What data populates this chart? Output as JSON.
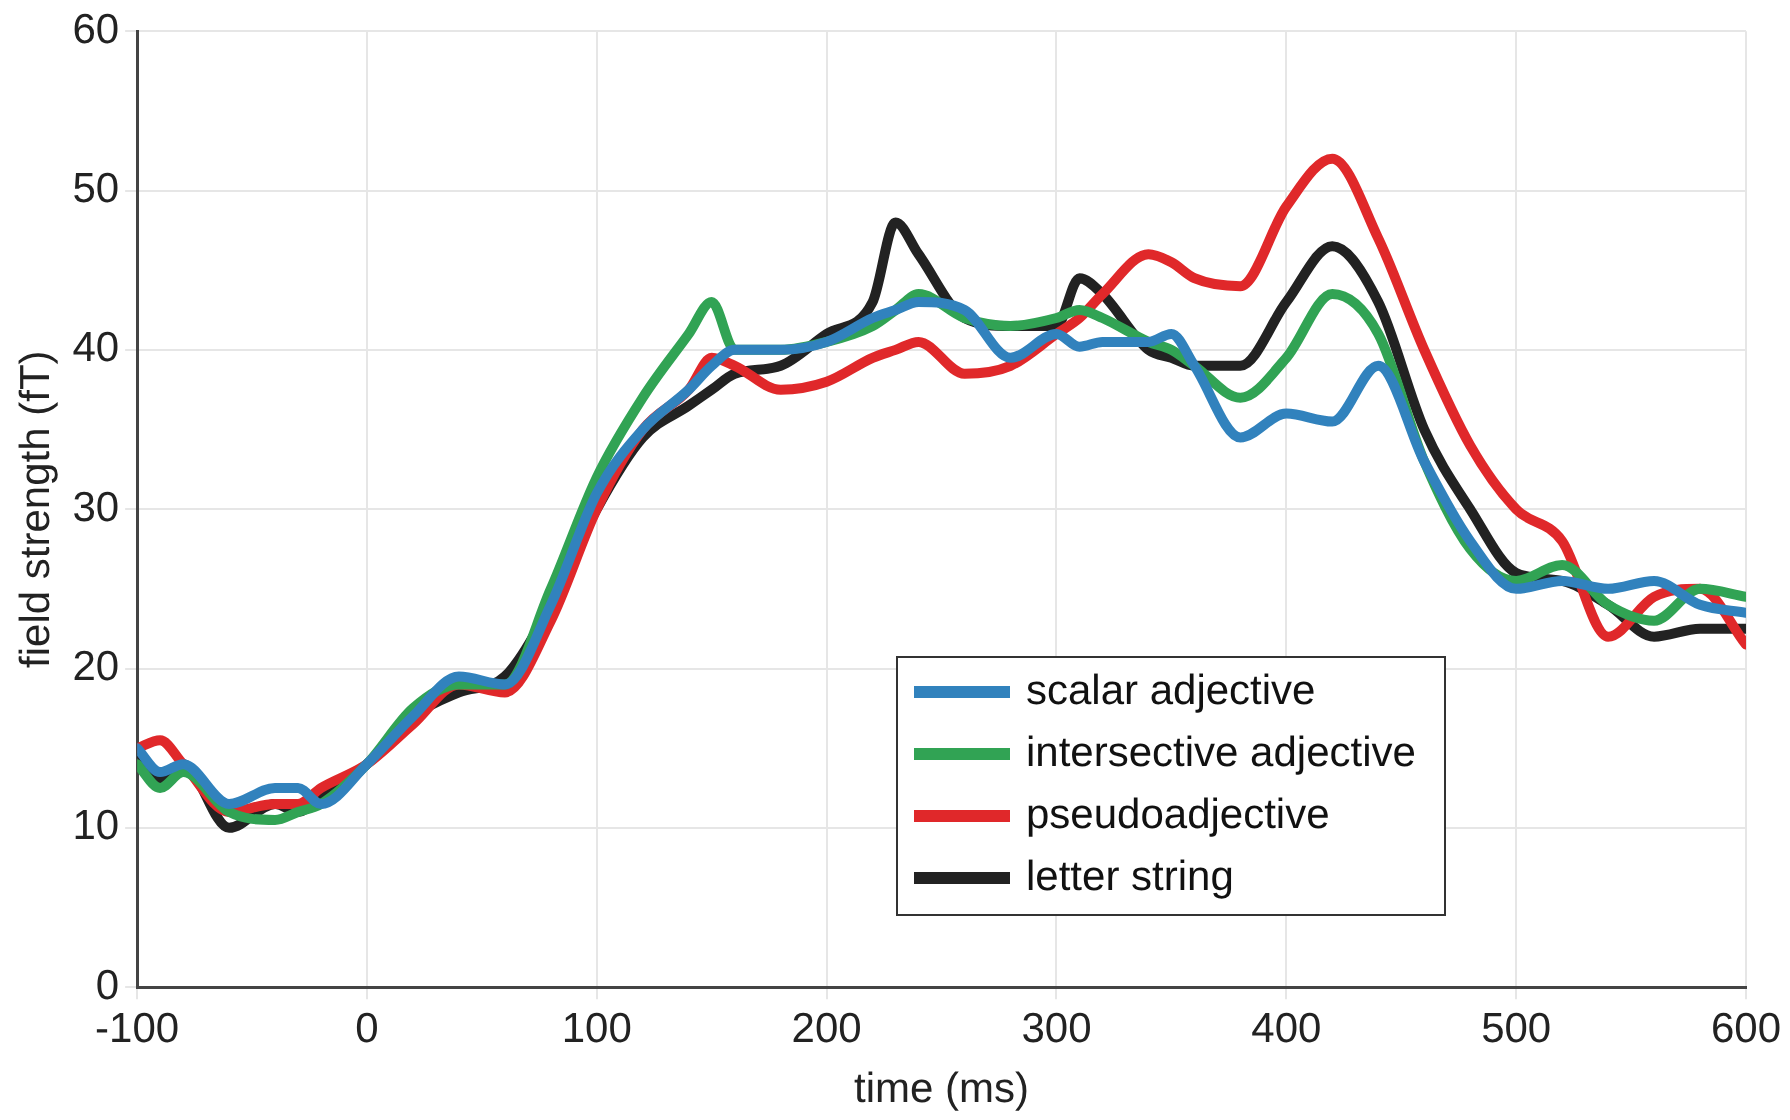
{
  "chart_data": {
    "type": "line",
    "xlabel": "time (ms)",
    "ylabel": "field strength (fT)",
    "x": [
      -100,
      -90,
      -80,
      -60,
      -40,
      -30,
      -20,
      0,
      20,
      40,
      60,
      80,
      100,
      120,
      140,
      150,
      160,
      180,
      200,
      220,
      230,
      240,
      260,
      280,
      300,
      310,
      320,
      340,
      350,
      360,
      380,
      400,
      420,
      440,
      460,
      480,
      500,
      520,
      540,
      560,
      580,
      600
    ],
    "xlim": [
      -100,
      600
    ],
    "xticks": [
      -100,
      0,
      100,
      200,
      300,
      400,
      500,
      600
    ],
    "ylim": [
      0,
      60
    ],
    "yticks": [
      0,
      10,
      20,
      30,
      40,
      50,
      60
    ],
    "grid": true,
    "legend": "bottom right",
    "marker": "none",
    "line_style": "solid",
    "series": [
      {
        "name": "scalar adjective",
        "color": "#3182bd",
        "values": [
          15,
          13.5,
          14,
          11.5,
          12.5,
          12.5,
          11.5,
          14,
          17,
          19.5,
          19,
          24,
          31,
          35,
          37.5,
          39,
          40,
          40,
          40.5,
          42,
          42.5,
          43,
          42.5,
          39.5,
          41,
          40.2,
          40.5,
          40.5,
          41,
          39,
          34.5,
          36,
          35.5,
          39,
          33,
          28,
          25,
          25.5,
          25,
          25.5,
          24,
          23.5
        ]
      },
      {
        "name": "intersective adjective",
        "color": "#31a354",
        "values": [
          14,
          12.5,
          13.5,
          11,
          10.5,
          11,
          11.5,
          14,
          17.5,
          19,
          19,
          25,
          32,
          37,
          41,
          43,
          40,
          40,
          40.5,
          41.5,
          42.5,
          43.5,
          42,
          41.5,
          42,
          42.5,
          42,
          40.5,
          40,
          39,
          37,
          39.5,
          43.5,
          41,
          33,
          27.5,
          25.5,
          26.5,
          24,
          23,
          25,
          24.5
        ]
      },
      {
        "name": "pseudoadjective",
        "color": "#e0282a",
        "values": [
          15,
          15.5,
          14,
          11,
          11.5,
          11.5,
          12.5,
          14,
          16.5,
          19,
          18.5,
          23,
          30,
          35,
          37.5,
          39.5,
          39,
          37.5,
          38,
          39.5,
          40,
          40.5,
          38.5,
          39,
          41,
          42,
          43.5,
          46,
          45.5,
          44.5,
          44,
          49,
          52,
          47,
          40,
          34,
          30,
          28,
          22,
          24.5,
          25,
          21.5
        ]
      },
      {
        "name": "letter string",
        "color": "#222222",
        "values": [
          15,
          13,
          14,
          10,
          11.5,
          11,
          12,
          14,
          17,
          18.5,
          19.5,
          24,
          30,
          34.5,
          36.5,
          37.5,
          38.5,
          39,
          41,
          43,
          48,
          46,
          42,
          41.5,
          41.5,
          44.5,
          43.5,
          40,
          39.5,
          39,
          39,
          43,
          46.5,
          43,
          35,
          30,
          26,
          25.5,
          24,
          22,
          22.5,
          22.5
        ]
      }
    ]
  }
}
